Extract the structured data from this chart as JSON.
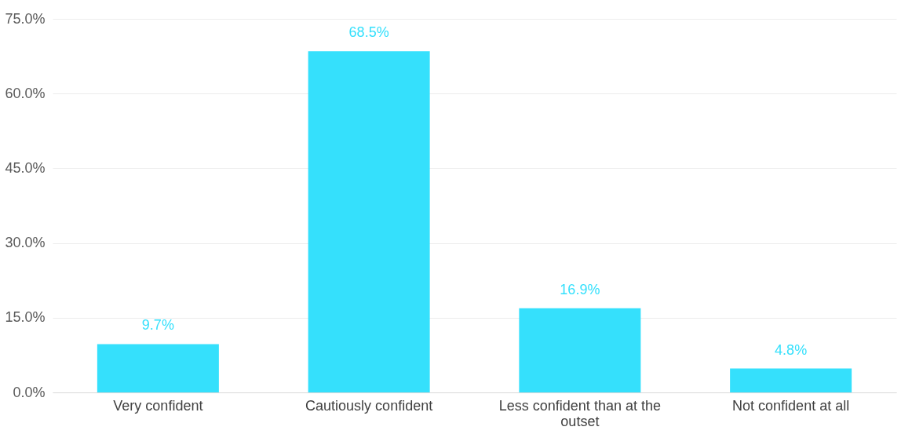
{
  "chart_data": {
    "type": "bar",
    "categories": [
      "Very confident",
      "Cautiously confident",
      "Less confident than at the outset",
      "Not confident at all"
    ],
    "values": [
      9.7,
      68.5,
      16.9,
      4.8
    ],
    "value_labels": [
      "9.7%",
      "68.5%",
      "16.9%",
      "4.8%"
    ],
    "color": "#35e0fc",
    "ylim": [
      0,
      75
    ],
    "yticks": [
      {
        "value": 0,
        "label": "0.0%"
      },
      {
        "value": 15,
        "label": "15.0%"
      },
      {
        "value": 30,
        "label": "30.0%"
      },
      {
        "value": 45,
        "label": "45.0%"
      },
      {
        "value": 60,
        "label": "60.0%"
      },
      {
        "value": 75,
        "label": "75.0%"
      }
    ],
    "grid": "y"
  }
}
